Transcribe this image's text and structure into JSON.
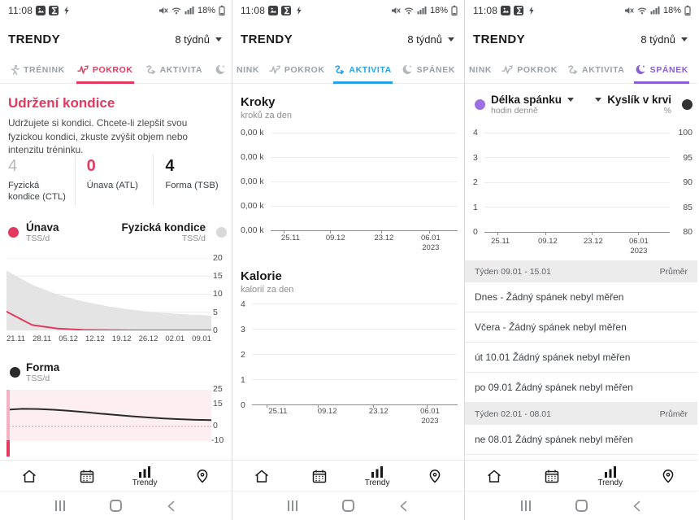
{
  "status_bar": {
    "time": "11:08",
    "battery_pct": "18%"
  },
  "header": {
    "title": "TRENDY",
    "range_label": "8 týdnů"
  },
  "tab_labels": {
    "trenink": "TRÉNINK",
    "trenink_partial": "NINK",
    "pokrok": "POKROK",
    "aktivita": "AKTIVITA",
    "spanek": "SPÁNEK"
  },
  "colors": {
    "pokrok_active": "#e23a5f",
    "aktivita_active": "#2aa1ea",
    "spanek_active": "#8a5fd6",
    "accent_pink": "#e23a5f"
  },
  "screen1": {
    "insight_title": "Udržení kondice",
    "insight_body": "Udržujete si kondici. Chcete-li zlepšit svou fyzickou kondici, zkuste zvýšit objem nebo intenzitu tréninku.",
    "stats": [
      {
        "value": "4",
        "label": "Fyzická kondice (CTL)"
      },
      {
        "value": "0",
        "label": "Únava (ATL)"
      },
      {
        "value": "4",
        "label": "Forma (TSB)"
      }
    ]
  },
  "chart_data": [
    {
      "id": "fitness-history",
      "type": "area",
      "grid": true,
      "legend": [
        {
          "name": "Únava",
          "unit": "TSS/d",
          "color": "#e23a5f"
        },
        {
          "name": "Fyzická kondice",
          "unit": "TSS/d",
          "color": "#d9d9d9"
        }
      ],
      "ylim": [
        0,
        20
      ],
      "yticks": [
        "20",
        "15",
        "10",
        "5",
        "0"
      ],
      "xticks": [
        "21.11",
        "28.11",
        "05.12",
        "12.12",
        "19.12",
        "26.12",
        "02.01",
        "09.01"
      ],
      "series": [
        {
          "name": "Fyzická kondice",
          "style": "area",
          "color": "#e4e4e4",
          "values": [
            16.5,
            12.6,
            9.9,
            8.0,
            6.6,
            5.6,
            4.9,
            4.4,
            4.1
          ]
        },
        {
          "name": "Únava",
          "style": "line",
          "color": "#e23a5f",
          "width": 2,
          "values": [
            5.2,
            1.5,
            0.5,
            0.15,
            0.05,
            0,
            0,
            0,
            0
          ]
        }
      ]
    },
    {
      "id": "forma",
      "type": "line",
      "legend": [
        {
          "name": "Forma",
          "unit": "TSS/d",
          "color": "#2b2b2b"
        }
      ],
      "ylim": [
        -10,
        25
      ],
      "yticks": [
        "25",
        "15",
        "0",
        "-10"
      ],
      "band": {
        "from": -10,
        "to": 25,
        "color": "#fdeef2"
      },
      "zero_line_dotted": true,
      "series": [
        {
          "name": "Forma",
          "style": "line",
          "color": "#2b2b2b",
          "width": 2,
          "values": [
            11.4,
            12.0,
            11.9,
            11.4,
            10.6,
            9.7,
            8.7,
            7.8,
            6.9,
            6.1,
            5.4,
            4.9,
            4.5,
            4.3
          ]
        }
      ]
    },
    {
      "id": "kroky",
      "type": "line",
      "title": "Kroky",
      "subtitle": "kroků za den",
      "yticks": [
        "0,00 k",
        "0,00 k",
        "0,00 k",
        "0,00 k",
        "0,00 k"
      ],
      "xticks": [
        "25.11",
        "09.12",
        "23.12",
        "06.01"
      ],
      "xtick_year": "2023",
      "series": []
    },
    {
      "id": "kalorie",
      "type": "line",
      "title": "Kalorie",
      "subtitle": "kalorií za den",
      "yticks": [
        "4",
        "3",
        "2",
        "1",
        "0"
      ],
      "xticks": [
        "25.11",
        "09.12",
        "23.12",
        "06.01"
      ],
      "xtick_year": "2023",
      "series": []
    },
    {
      "id": "spanek-kyslik",
      "type": "line",
      "legend_left": {
        "name": "Délka spánku",
        "unit": "hodin denně",
        "color": "#9d6fe0"
      },
      "legend_right": {
        "name": "Kyslík v krvi",
        "unit": "%",
        "color": "#333333"
      },
      "yticks_left": [
        "4",
        "3",
        "2",
        "1",
        "0"
      ],
      "yticks_right": [
        "100",
        "95",
        "90",
        "85",
        "80"
      ],
      "xticks": [
        "25.11",
        "09.12",
        "23.12",
        "06.01"
      ],
      "xtick_year": "2023",
      "series": []
    }
  ],
  "sleep_list": {
    "items": [
      {
        "type": "header",
        "left": "Týden 09.01 - 15.01",
        "right": "Průměr"
      },
      {
        "type": "row",
        "text": "Dnes - Žádný spánek nebyl měřen"
      },
      {
        "type": "row",
        "text": "Včera - Žádný spánek nebyl měřen"
      },
      {
        "type": "row",
        "text": "út 10.01 Žádný spánek nebyl měřen"
      },
      {
        "type": "row",
        "text": "po 09.01 Žádný spánek nebyl měřen"
      },
      {
        "type": "header",
        "left": "Týden 02.01 - 08.01",
        "right": "Průměr"
      },
      {
        "type": "row",
        "text": "ne 08.01 Žádný spánek nebyl měřen"
      }
    ]
  },
  "bottom_nav": {
    "trendy_label": "Trendy"
  }
}
